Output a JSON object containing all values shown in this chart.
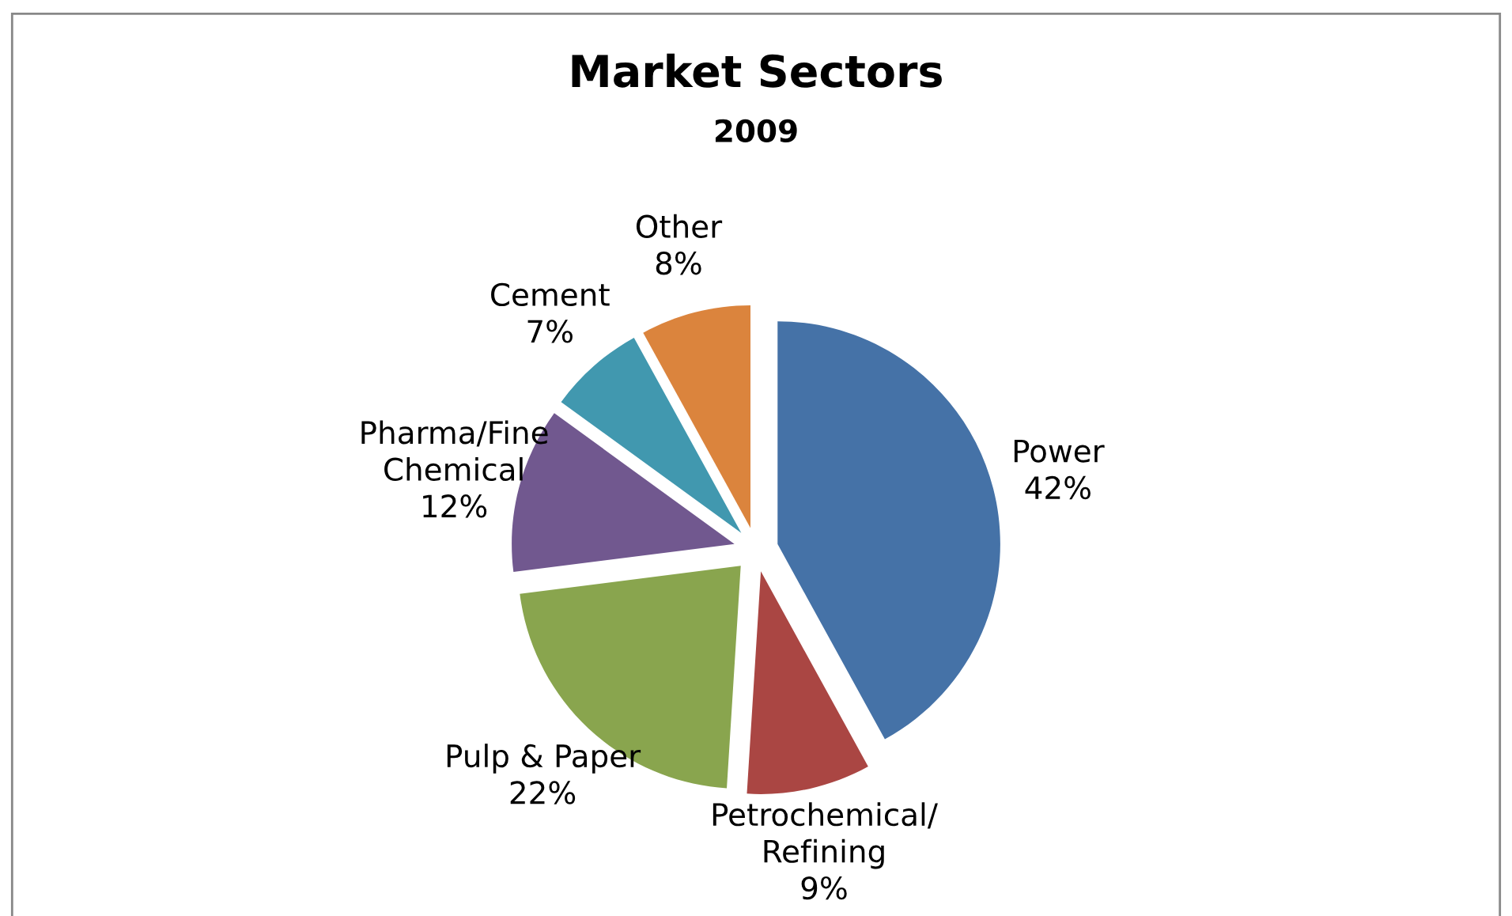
{
  "chart_data": {
    "type": "pie",
    "title": "Market Sectors",
    "subtitle": "2009",
    "categories": [
      "Power",
      "Petrochemical/\nRefining",
      "Pulp & Paper",
      "Pharma/Fine\nChemical",
      "Cement",
      "Other"
    ],
    "values": [
      42,
      9,
      22,
      12,
      7,
      8
    ],
    "value_labels": [
      "42%",
      "9%",
      "22%",
      "12%",
      "7%",
      "8%"
    ],
    "colors": [
      "#4572a7",
      "#aa4643",
      "#89a54e",
      "#71588f",
      "#4198af",
      "#db843d"
    ],
    "legend": false
  }
}
